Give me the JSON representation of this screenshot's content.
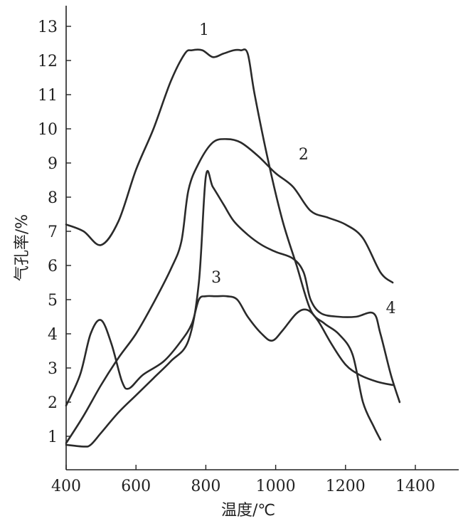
{
  "chart_data": {
    "type": "line",
    "xlabel": "温度/℃",
    "ylabel": "气孔率/%",
    "xlim": [
      400,
      1500
    ],
    "ylim": [
      0,
      13.5
    ],
    "xticks": [
      400,
      600,
      800,
      1000,
      1200,
      1400
    ],
    "yticks": [
      1,
      2,
      3,
      4,
      5,
      6,
      7,
      8,
      9,
      10,
      11,
      12,
      13
    ],
    "grid": false,
    "series": [
      {
        "name": "1",
        "x": [
          400,
          450,
          500,
          550,
          600,
          650,
          700,
          740,
          760,
          790,
          820,
          850,
          880,
          900,
          920,
          940,
          980,
          1020,
          1060,
          1100,
          1140,
          1180,
          1220,
          1250,
          1280,
          1300
        ],
        "y": [
          7.2,
          7.0,
          6.6,
          7.3,
          8.8,
          10.0,
          11.4,
          12.2,
          12.3,
          12.3,
          12.1,
          12.2,
          12.3,
          12.3,
          12.2,
          11.0,
          9.0,
          7.3,
          6.0,
          4.7,
          4.3,
          4.0,
          3.4,
          2.0,
          1.3,
          0.9
        ]
      },
      {
        "name": "2",
        "x": [
          400,
          450,
          500,
          550,
          600,
          650,
          700,
          730,
          750,
          780,
          820,
          860,
          900,
          950,
          1000,
          1050,
          1100,
          1150,
          1200,
          1250,
          1300,
          1335
        ],
        "y": [
          0.8,
          1.6,
          2.5,
          3.3,
          4.0,
          4.9,
          5.9,
          6.7,
          8.2,
          9.0,
          9.6,
          9.7,
          9.6,
          9.2,
          8.7,
          8.3,
          7.6,
          7.4,
          7.2,
          6.8,
          5.8,
          5.5
        ]
      },
      {
        "name": "3",
        "x": [
          400,
          440,
          470,
          500,
          530,
          560,
          580,
          620,
          680,
          730,
          760,
          780,
          800,
          830,
          860,
          890,
          920,
          960,
          990,
          1020,
          1060,
          1090,
          1120,
          1160,
          1200,
          1240,
          1290,
          1335
        ],
        "y": [
          1.9,
          2.8,
          4.0,
          4.4,
          3.7,
          2.6,
          2.4,
          2.8,
          3.2,
          3.8,
          4.3,
          5.0,
          5.1,
          5.1,
          5.1,
          5.0,
          4.5,
          4.0,
          3.8,
          4.1,
          4.6,
          4.7,
          4.4,
          3.7,
          3.1,
          2.8,
          2.6,
          2.5
        ]
      },
      {
        "name": "4",
        "x": [
          400,
          450,
          470,
          500,
          550,
          600,
          650,
          700,
          750,
          780,
          800,
          820,
          850,
          880,
          920,
          960,
          1000,
          1050,
          1080,
          1100,
          1130,
          1180,
          1230,
          1280,
          1300,
          1330,
          1355
        ],
        "y": [
          0.75,
          0.7,
          0.75,
          1.1,
          1.7,
          2.2,
          2.7,
          3.2,
          3.8,
          5.5,
          8.6,
          8.3,
          7.8,
          7.3,
          6.9,
          6.6,
          6.4,
          6.2,
          5.8,
          5.0,
          4.6,
          4.5,
          4.5,
          4.6,
          4.0,
          2.8,
          2.0
        ]
      }
    ],
    "curve_labels": [
      {
        "text": "1",
        "x": 1000,
        "y": 0
      },
      {
        "text": "2",
        "x": 0,
        "y": 0
      },
      {
        "text": "3",
        "x": 0,
        "y": 0
      },
      {
        "text": "4",
        "x": 0,
        "y": 0
      }
    ]
  }
}
